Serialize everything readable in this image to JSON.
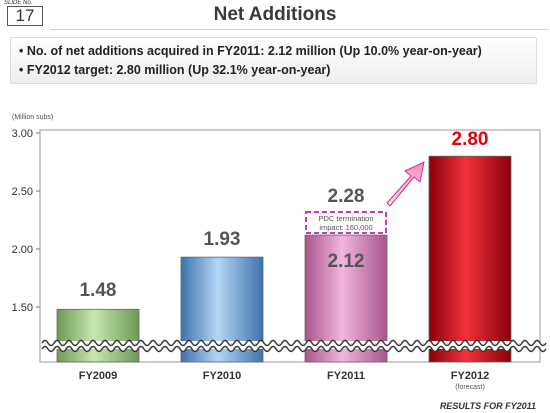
{
  "header": {
    "slide_label": "SLIDE No.",
    "slide_number": "17",
    "title": "Net Additions"
  },
  "summary": {
    "bullets": [
      "No. of net additions acquired in FY2011: 2.12 million (Up 10.0% year-on-year)",
      "FY2012 target: 2.80 million (Up 32.1% year-on-year)"
    ]
  },
  "footer": {
    "text": "RESULTS FOR FY2011"
  },
  "chart_data": {
    "type": "bar",
    "ylabel": "(Million subs)",
    "ylim": [
      1.15,
      3.0
    ],
    "y_ticks": [
      "1.50",
      "2.00",
      "2.50",
      "3.00"
    ],
    "y_tick_values": [
      1.5,
      2.0,
      2.5,
      3.0
    ],
    "axis_break": true,
    "categories": [
      "FY2009",
      "FY2010",
      "FY2011",
      "FY2012"
    ],
    "category_sublabels": [
      "",
      "",
      "",
      "(forecast)"
    ],
    "values": [
      1.48,
      1.93,
      2.12,
      2.8
    ],
    "value_labels": [
      "1.48",
      "1.93",
      "2.12",
      "2.80"
    ],
    "bar_colors": [
      "#9dc77f",
      "#6aa0d8",
      "#d98bbf",
      "#c00010"
    ],
    "annotation": {
      "category": "FY2011",
      "value_label": "2.28",
      "value": 2.28,
      "note_lines": [
        "PDC termination",
        "impact: 160,000"
      ]
    },
    "grid": false
  }
}
